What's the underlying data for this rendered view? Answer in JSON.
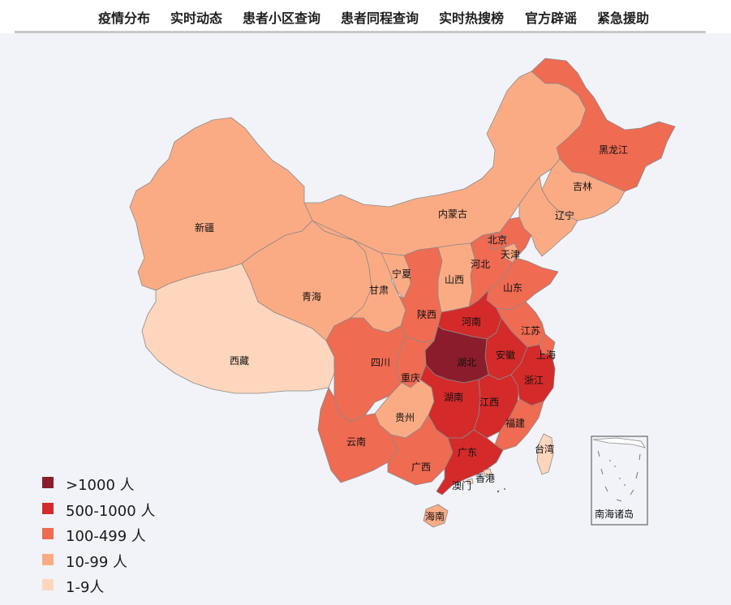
{
  "nav": {
    "items": [
      "疫情分布",
      "实时动态",
      "患者小区查询",
      "患者同程查询",
      "实时热搜榜",
      "官方辟谣",
      "紧急援助"
    ]
  },
  "colors": {
    "tier_gt1000": "#8b1c2b",
    "tier_500_1000": "#d42a2a",
    "tier_100_499": "#ef6b52",
    "tier_10_99": "#fbab84",
    "tier_1_9": "#fdd6bd",
    "background": "#f1f3f8"
  },
  "legend": {
    "items": [
      {
        "label": ">1000 人",
        "color": "#8b1c2b"
      },
      {
        "label": "500-1000 人",
        "color": "#d42a2a"
      },
      {
        "label": "100-499 人",
        "color": "#ef6b52"
      },
      {
        "label": "10-99 人",
        "color": "#fbab84"
      },
      {
        "label": "1-9人",
        "color": "#fdd6bd"
      }
    ]
  },
  "map": {
    "inset_label": "南海诸岛",
    "provinces": {
      "heilongjiang": {
        "name": "黑龙江",
        "tier": "100-499 人"
      },
      "jilin": {
        "name": "吉林",
        "tier": "10-99 人"
      },
      "liaoning": {
        "name": "辽宁",
        "tier": "10-99 人"
      },
      "neimenggu": {
        "name": "内蒙古",
        "tier": "10-99 人"
      },
      "xinjiang": {
        "name": "新疆",
        "tier": "10-99 人"
      },
      "xizang": {
        "name": "西藏",
        "tier": "1-9人"
      },
      "qinghai": {
        "name": "青海",
        "tier": "10-99 人"
      },
      "gansu": {
        "name": "甘肃",
        "tier": "10-99 人"
      },
      "ningxia": {
        "name": "宁夏",
        "tier": "10-99 人"
      },
      "shaanxi": {
        "name": "陕西",
        "tier": "100-499 人"
      },
      "shanxi": {
        "name": "山西",
        "tier": "10-99 人"
      },
      "hebei": {
        "name": "河北",
        "tier": "100-499 人"
      },
      "beijing": {
        "name": "北京",
        "tier": "100-499 人"
      },
      "tianjin": {
        "name": "天津",
        "tier": "10-99 人"
      },
      "shandong": {
        "name": "山东",
        "tier": "100-499 人"
      },
      "henan": {
        "name": "河南",
        "tier": "500-1000 人"
      },
      "jiangsu": {
        "name": "江苏",
        "tier": "100-499 人"
      },
      "anhui": {
        "name": "安徽",
        "tier": "500-1000 人"
      },
      "shanghai": {
        "name": "上海",
        "tier": "100-499 人"
      },
      "zhejiang": {
        "name": "浙江",
        "tier": "500-1000 人"
      },
      "hubei": {
        "name": "湖北",
        "tier": ">1000 人"
      },
      "chongqing": {
        "name": "重庆",
        "tier": "100-499 人"
      },
      "sichuan": {
        "name": "四川",
        "tier": "100-499 人"
      },
      "guizhou": {
        "name": "贵州",
        "tier": "10-99 人"
      },
      "hunan": {
        "name": "湖南",
        "tier": "500-1000 人"
      },
      "jiangxi": {
        "name": "江西",
        "tier": "500-1000 人"
      },
      "fujian": {
        "name": "福建",
        "tier": "100-499 人"
      },
      "yunnan": {
        "name": "云南",
        "tier": "100-499 人"
      },
      "guangxi": {
        "name": "广西",
        "tier": "100-499 人"
      },
      "guangdong": {
        "name": "广东",
        "tier": "500-1000 人"
      },
      "hainan": {
        "name": "海南",
        "tier": "10-99 人"
      },
      "taiwan": {
        "name": "台湾",
        "tier": "1-9人"
      },
      "hongkong": {
        "name": "香港",
        "tier": "1-9人"
      },
      "macau": {
        "name": "澳门",
        "tier": "1-9人"
      }
    }
  }
}
